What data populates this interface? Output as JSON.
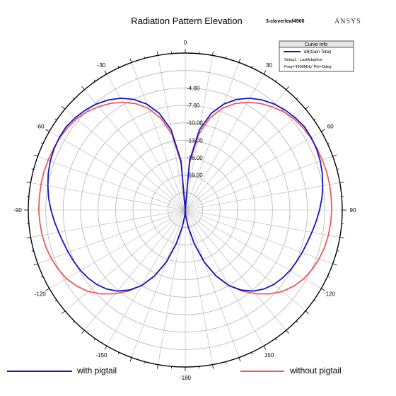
{
  "header": {
    "title": "Radiation Pattern Elevation",
    "subtitle": "3-cloverleaf4900",
    "brand": "ANSYS"
  },
  "curve_info": {
    "title": "Curve Info",
    "series_label": "dB(Gain Total)",
    "setup": "Setup1 : LastAdaptive",
    "params": "Freq='4900MHz' Phi='0deg'"
  },
  "legend": {
    "with_pigtail": "with pigtail",
    "without_pigtail": "without pigtail"
  },
  "colors": {
    "with_pigtail": "#1515c0",
    "without_pigtail": "#ee5a5a",
    "grid": "#b4b4b4"
  },
  "chart_data": {
    "type": "polar-line",
    "radial_tick_labels": [
      "-4.00",
      "-7.00",
      "-10.00",
      "-13.00",
      "-16.00",
      "-19.00"
    ],
    "radial_ticks": [
      -4,
      -7,
      -10,
      -13,
      -16,
      -19
    ],
    "radial_range": [
      -25,
      2
    ],
    "angle_tick_labels": [
      "0",
      "30",
      "60",
      "90",
      "120",
      "150",
      "-180",
      "-150",
      "-120",
      "-90",
      "-60",
      "-30"
    ],
    "angle_ticks": [
      0,
      30,
      60,
      90,
      120,
      150,
      180,
      -150,
      -120,
      -90,
      -60,
      -30
    ],
    "theta_unit": "deg",
    "series": [
      {
        "name": "with pigtail",
        "theta": [
          0,
          5,
          10,
          15,
          20,
          25,
          30,
          35,
          40,
          45,
          50,
          55,
          60,
          65,
          70,
          75,
          80,
          85,
          90,
          95,
          100,
          105,
          110,
          115,
          120,
          125,
          130,
          135,
          140,
          145,
          150,
          155,
          160,
          165,
          170,
          175,
          180
        ],
        "gain_db": [
          -25,
          -16.5,
          -11.0,
          -7.8,
          -5.6,
          -4.0,
          -2.8,
          -1.9,
          -1.2,
          -0.7,
          -0.3,
          0.0,
          0.0,
          -0.1,
          -0.3,
          -0.6,
          -1.0,
          -1.4,
          -1.9,
          -2.4,
          -2.9,
          -3.3,
          -3.6,
          -3.9,
          -4.2,
          -4.6,
          -5.1,
          -5.8,
          -6.8,
          -8.2,
          -10.0,
          -12.5,
          -15.5,
          -19.0,
          -22.0,
          -24.0,
          -25
        ]
      },
      {
        "name": "without pigtail",
        "theta": [
          0,
          5,
          10,
          15,
          20,
          25,
          30,
          35,
          40,
          45,
          50,
          55,
          60,
          65,
          70,
          75,
          80,
          85,
          90,
          95,
          100,
          105,
          110,
          115,
          120,
          125,
          130,
          135,
          140,
          145,
          150,
          155,
          160,
          165,
          170,
          175,
          180
        ],
        "gain_db": [
          -25,
          -17.0,
          -11.8,
          -8.6,
          -6.4,
          -4.8,
          -3.6,
          -2.6,
          -1.8,
          -1.1,
          -0.6,
          -0.3,
          -0.1,
          0.0,
          0.1,
          0.2,
          0.2,
          0.2,
          0.2,
          0.1,
          0.0,
          -0.2,
          -0.5,
          -0.9,
          -1.4,
          -2.2,
          -3.2,
          -4.6,
          -6.2,
          -8.0,
          -10.0,
          -12.5,
          -15.5,
          -19.0,
          -22.0,
          -24.0,
          -25
        ]
      }
    ]
  }
}
